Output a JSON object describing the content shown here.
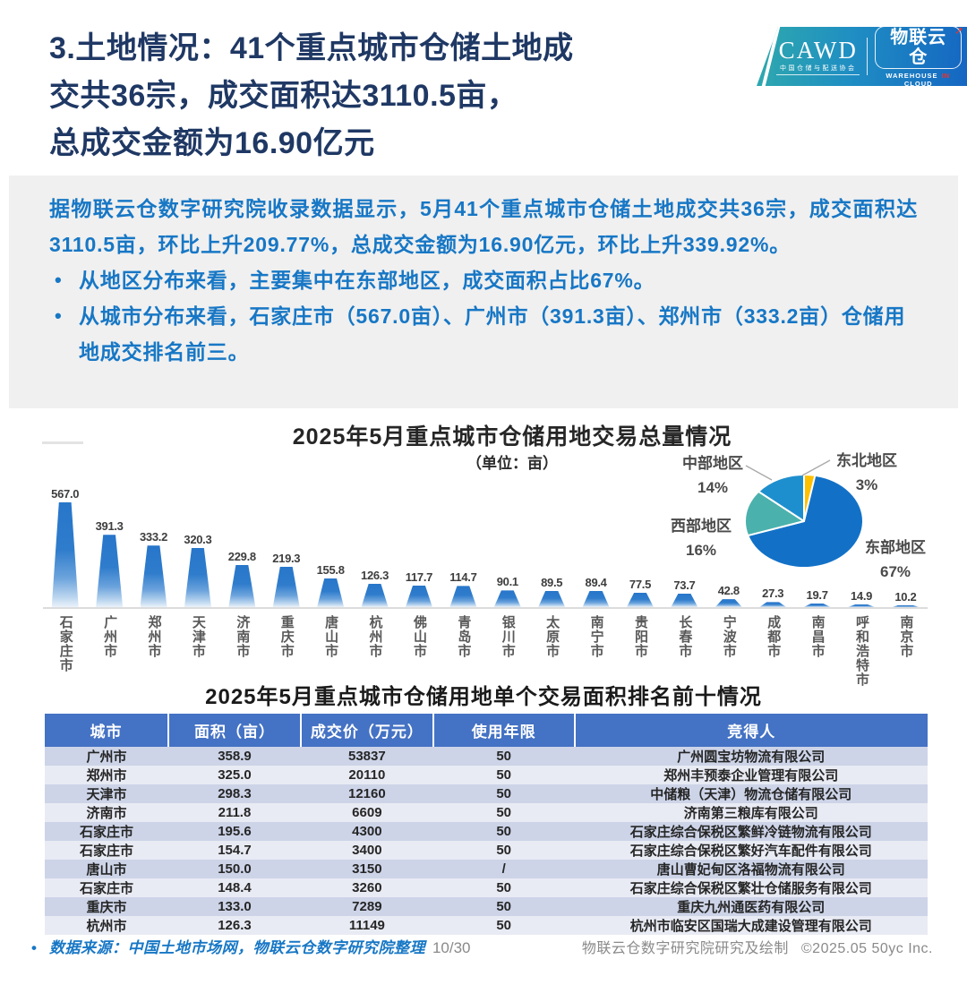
{
  "header": {
    "title": "3.土地情况：41个重点城市仓储土地成\n交共36宗，成交面积达3110.5亩，\n总成交金额为16.90亿元",
    "logo": {
      "cawd": "CAWD",
      "cawd_sub": "中国仓储与配送协会",
      "brand": "物联云仓",
      "brand_arrow": "➚",
      "brand_sub_parts": [
        "WAREHOUSE",
        "IN",
        "CLOUD"
      ]
    }
  },
  "summary": {
    "paragraph": "据物联云仓数字研究院收录数据显示，5月41个重点城市仓储土地成交共36宗，成交面积达3110.5亩，环比上升209.77%，总成交金额为16.90亿元，环比上升339.92%。",
    "bullets": [
      "从地区分布来看，主要集中在东部地区，成交面积占比67%。",
      "从城市分布来看，石家庄市（567.0亩）、广州市（391.3亩）、郑州市（333.2亩）仓储用地成交排名前三。"
    ]
  },
  "chart_data": [
    {
      "type": "bar",
      "title": "2025年5月重点城市仓储用地交易总量情况",
      "subtitle": "（单位：亩）",
      "categories": [
        "石家庄市",
        "广州市",
        "郑州市",
        "天津市",
        "济南市",
        "重庆市",
        "唐山市",
        "杭州市",
        "佛山市",
        "青岛市",
        "银川市",
        "太原市",
        "南宁市",
        "贵阳市",
        "长春市",
        "宁波市",
        "成都市",
        "南昌市",
        "呼和浩特市",
        "南京市"
      ],
      "values": [
        567.0,
        391.3,
        333.2,
        320.3,
        229.8,
        219.3,
        155.8,
        126.3,
        117.7,
        114.7,
        90.1,
        89.5,
        89.4,
        77.5,
        73.7,
        42.8,
        27.3,
        19.7,
        14.9,
        10.2
      ],
      "value_labels": [
        "567.0",
        "391.3",
        "333.2",
        "320.3",
        "229.8",
        "219.3",
        "155.8",
        "126.3",
        "117.7",
        "114.7",
        "90.1",
        "89.5",
        "89.4",
        "77.5",
        "73.7",
        "42.8",
        "27.3",
        "19.7",
        "14.9",
        "10.2"
      ],
      "ylim": [
        0,
        600
      ],
      "grid": false,
      "bar_color_top": "#2776ca",
      "bar_color_bottom": "#eaf2fa"
    },
    {
      "type": "pie",
      "start": "top",
      "direction": "clockwise",
      "unit": "%",
      "slices": [
        {
          "name": "东北地区",
          "value": 3,
          "pct_label": "3%",
          "color": "#FFC000"
        },
        {
          "name": "东部地区",
          "value": 67,
          "pct_label": "67%",
          "color": "#1271C7"
        },
        {
          "name": "西部地区",
          "value": 16,
          "pct_label": "16%",
          "color": "#4BB1AC"
        },
        {
          "name": "中部地区",
          "value": 14,
          "pct_label": "14%",
          "color": "#1E8FCE"
        }
      ]
    }
  ],
  "table": {
    "title": "2025年5月重点城市仓储用地单个交易面积排名前十情况",
    "headers": [
      "城市",
      "面积（亩）",
      "成交价（万元）",
      "使用年限",
      "竞得人"
    ],
    "rows": [
      [
        "广州市",
        "358.9",
        "53837",
        "50",
        "广州圆宝坊物流有限公司"
      ],
      [
        "郑州市",
        "325.0",
        "20110",
        "50",
        "郑州丰预泰企业管理有限公司"
      ],
      [
        "天津市",
        "298.3",
        "12160",
        "50",
        "中储粮（天津）物流仓储有限公司"
      ],
      [
        "济南市",
        "211.8",
        "6609",
        "50",
        "济南第三粮库有限公司"
      ],
      [
        "石家庄市",
        "195.6",
        "4300",
        "50",
        "石家庄综合保税区繁鲜冷链物流有限公司"
      ],
      [
        "石家庄市",
        "154.7",
        "3400",
        "50",
        "石家庄综合保税区繁好汽车配件有限公司"
      ],
      [
        "唐山市",
        "150.0",
        "3150",
        "/",
        "唐山曹妃甸区洛福物流有限公司"
      ],
      [
        "石家庄市",
        "148.4",
        "3260",
        "50",
        "石家庄综合保税区繁壮仓储服务有限公司"
      ],
      [
        "重庆市",
        "133.0",
        "7289",
        "50",
        "重庆九州通医药有限公司"
      ],
      [
        "杭州市",
        "126.3",
        "11149",
        "50",
        "杭州市临安区国瑞大成建设管理有限公司"
      ]
    ]
  },
  "footer": {
    "bullet": "•",
    "source": "数据来源：中国土地市场网，物联云仓数字研究院整理",
    "page": "10/30",
    "credit": "物联云仓数字研究院研究及绘制",
    "copyright": "©2025.05 50yc Inc."
  },
  "colors": {
    "title_navy": "#1F3864",
    "summary_blue": "#1777C5",
    "panel_gray": "#F0F0F0",
    "table_header_blue": "#4472C4",
    "table_row_dark": "#CDD4E8",
    "table_row_light": "#E9EBF4",
    "bar_blue": "#2776CA"
  }
}
